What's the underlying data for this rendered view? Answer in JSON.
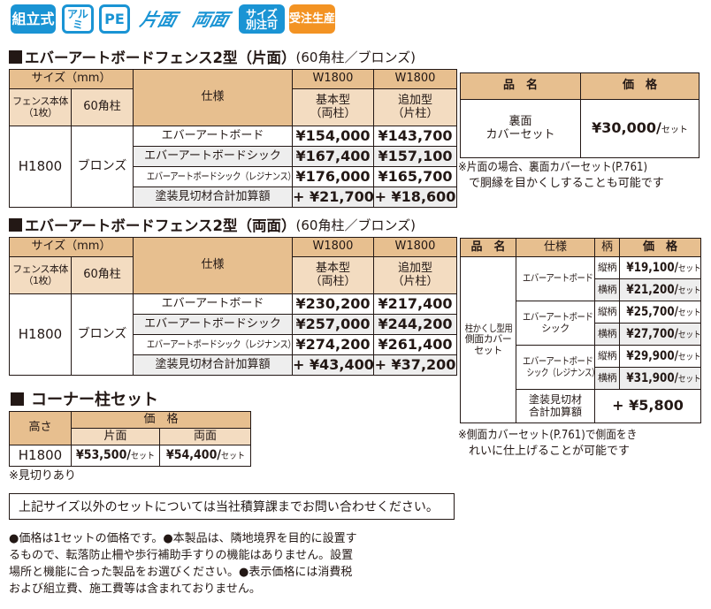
{
  "badges": [
    {
      "label": "組立式",
      "color": "#1a94d4"
    },
    {
      "label": "アルミ",
      "color": "#1a94d4"
    },
    {
      "label": "PE",
      "color": "#1a94d4"
    },
    {
      "label": "片面",
      "color": "#1a94d4"
    },
    {
      "label": "両面",
      "color": "#1a94d4"
    },
    {
      "label_line1": "サイズ",
      "label_line2": "別注可",
      "color": "#1a94d4"
    },
    {
      "label": "受注生産",
      "color": "#f39323"
    }
  ],
  "section1": {
    "title": "エバーアートボードフェンス2型（片面）",
    "title_sub": "(60角柱／ブロンズ)",
    "table": {
      "size_header": "サイズ（mm）",
      "spec_header": "仕様",
      "body_header_line1": "フェンス本体",
      "body_header_line2": "（1枚）",
      "post_header": "60角柱",
      "w1": "W1800",
      "w2": "W1800",
      "type1_line1": "基本型",
      "type1_line2": "（両柱）",
      "type2_line1": "追加型",
      "type2_line2": "（片柱）",
      "height": "H1800",
      "color": "ブロンズ",
      "rows": [
        {
          "spec": "エバーアートボード",
          "basic": "¥154,000",
          "add": "¥143,700"
        },
        {
          "spec": "エバーアートボードシック",
          "basic": "¥167,400",
          "add": "¥157,100"
        },
        {
          "spec": "エバーアートボードシック（レジナンス）",
          "basic": "¥176,000",
          "add": "¥165,700"
        },
        {
          "spec": "塗装見切材合計加算額",
          "basic": "+ ¥21,700",
          "add": "+ ¥18,600"
        }
      ]
    },
    "cover": {
      "name_header": "品　名",
      "price_header": "価　格",
      "name_line1": "裏面",
      "name_line2": "カバーセット",
      "price": "¥30,000/",
      "unit": "セット"
    },
    "note_line1": "※片面の場合、裏面カバーセット(P.761)",
    "note_line2": "で胴縁を目かくしすることも可能です"
  },
  "section2": {
    "title": "エバーアートボードフェンス2型（両面）",
    "title_sub": "(60角柱／ブロンズ)",
    "table": {
      "size_header": "サイズ（mm）",
      "spec_header": "仕様",
      "body_header_line1": "フェンス本体",
      "body_header_line2": "（1枚）",
      "post_header": "60角柱",
      "w1": "W1800",
      "w2": "W1800",
      "type1_line1": "基本型",
      "type1_line2": "（両柱）",
      "type2_line1": "追加型",
      "type2_line2": "（片柱）",
      "height": "H1800",
      "color": "ブロンズ",
      "rows": [
        {
          "spec": "エバーアートボード",
          "basic": "¥230,200",
          "add": "¥217,400"
        },
        {
          "spec": "エバーアートボードシック",
          "basic": "¥257,000",
          "add": "¥244,200"
        },
        {
          "spec": "エバーアートボードシック（レジナンス）",
          "basic": "¥274,200",
          "add": "¥261,400"
        },
        {
          "spec": "塗装見切材合計加算額",
          "basic": "+ ¥43,400",
          "add": "+ ¥37,200"
        }
      ]
    },
    "side_cover": {
      "name_header": "品　名",
      "spec_header": "仕様",
      "pattern_header": "柄",
      "price_header": "価　格",
      "name_line1": "柱かくし型用",
      "name_line2": "側面カバー",
      "name_line3": "セット",
      "unit": "セット",
      "groups": [
        {
          "spec_line1": "エバーアートボード",
          "spec_line2": "",
          "rows": [
            {
              "pattern": "縦柄",
              "price": "¥19,100/"
            },
            {
              "pattern": "横柄",
              "price": "¥21,200/"
            }
          ]
        },
        {
          "spec_line1": "エバーアートボード",
          "spec_line2": "シック",
          "rows": [
            {
              "pattern": "縦柄",
              "price": "¥25,700/"
            },
            {
              "pattern": "横柄",
              "price": "¥27,700/"
            }
          ]
        },
        {
          "spec_line1": "エバーアートボード",
          "spec_line2": "シック（レジナンス）",
          "rows": [
            {
              "pattern": "縦柄",
              "price": "¥29,900/"
            },
            {
              "pattern": "横柄",
              "price": "¥31,900/"
            }
          ]
        }
      ],
      "extra_line1": "塗装見切材",
      "extra_line2": "合計加算額",
      "extra_price": "+ ¥5,800"
    },
    "note_line1": "※側面カバーセット(P.761)で側面をき",
    "note_line2": "れいに仕上げることが可能です"
  },
  "corner": {
    "title": "コーナー柱セット",
    "height_header": "高さ",
    "price_header": "価　格",
    "one_side": "片面",
    "two_side": "両面",
    "height": "H1800",
    "price_one": "¥53,500/",
    "price_two": "¥54,400/",
    "unit": "セット",
    "note": "※見切りあり"
  },
  "inquiry": "上記サイズ以外のセットについては当社積算課までお問い合わせください。",
  "footer_lines": [
    "●価格は1セットの価格です。●本製品は、隣地境界を目的に設置す",
    "るもので、転落防止柵や歩行補助手すりの機能はありません。設置",
    "場所と機能に合った製品をお選びください。●表示価格には消費税",
    "および組立費、施工費等は含まれておりません。"
  ]
}
